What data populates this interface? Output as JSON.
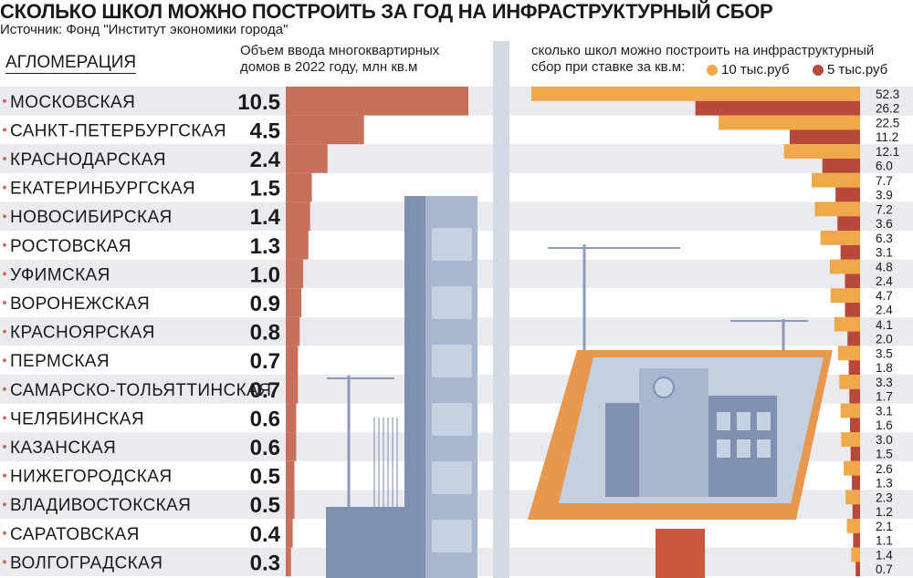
{
  "title": "СКОЛЬКО ШКОЛ МОЖНО ПОСТРОИТЬ ЗА ГОД НА ИНФРАСТРУКТУРНЫЙ СБОР",
  "source": "Источник: Фонд \"Институт экономики города\"",
  "column_header": "АГЛОМЕРАЦИЯ",
  "left_subtitle": "Объем ввода многоквартирных домов в 2022 году, млн кв.м",
  "right_subtitle": "сколько школ можно построить на инфраструктурный сбор при ставке за кв.м:",
  "legend": [
    {
      "label": "10 тыс.руб",
      "color": "#f0a94a"
    },
    {
      "label": "5 тыс.руб",
      "color": "#b7483a"
    }
  ],
  "colors": {
    "row_stripe": "#e9ebef",
    "left_bar": "#c86f5b",
    "divider": "#d3dae3",
    "building": "#7f90b3",
    "building_light": "#a8b6cf",
    "window": "#c7d1e2",
    "crane": "#8d9ab8",
    "frame": "#e8974f",
    "screen": "#c4cfdf",
    "stand": "#c9593a"
  },
  "chart_data": [
    {
      "type": "bar",
      "categories": [
        "МОСКОВСКАЯ",
        "САНКТ-ПЕТЕРБУРГСКАЯ",
        "КРАСНОДАРСКАЯ",
        "ЕКАТЕРИНБУРГСКАЯ",
        "НОВОСИБИРСКАЯ",
        "РОСТОВСКАЯ",
        "УФИМСКАЯ",
        "ВОРОНЕЖСКАЯ",
        "КРАСНОЯРСКАЯ",
        "ПЕРМСКАЯ",
        "САМАРСКО-ТОЛЬЯТТИНСКАЯ",
        "ЧЕЛЯБИНСКАЯ",
        "КАЗАНСКАЯ",
        "НИЖЕГОРОДСКАЯ",
        "ВЛАДИВОСТОКСКАЯ",
        "САРАТОВСКАЯ",
        "ВОЛГОГРАДСКАЯ"
      ],
      "values": [
        10.5,
        4.5,
        2.4,
        1.5,
        1.4,
        1.3,
        1.0,
        0.9,
        0.8,
        0.7,
        0.7,
        0.6,
        0.6,
        0.5,
        0.5,
        0.4,
        0.3
      ],
      "value_labels": [
        "10.5",
        "4.5",
        "2.4",
        "1.5",
        "1.4",
        "1.3",
        "1.0",
        "0.9",
        "0.8",
        "0.7",
        "0.7",
        "0.6",
        "0.6",
        "0.5",
        "0.5",
        "0.4",
        "0.3"
      ],
      "title": "Объем ввода многоквартирных домов в 2022 году, млн кв.м",
      "xlim": [
        0,
        10.5
      ]
    },
    {
      "type": "bar",
      "categories": [
        "МОСКОВСКАЯ",
        "САНКТ-ПЕТЕРБУРГСКАЯ",
        "КРАСНОДАРСКАЯ",
        "ЕКАТЕРИНБУРГСКАЯ",
        "НОВОСИБИРСКАЯ",
        "РОСТОВСКАЯ",
        "УФИМСКАЯ",
        "ВОРОНЕЖСКАЯ",
        "КРАСНОЯРСКАЯ",
        "ПЕРМСКАЯ",
        "САМАРСКО-ТОЛЬЯТТИНСКАЯ",
        "ЧЕЛЯБИНСКАЯ",
        "КАЗАНСКАЯ",
        "НИЖЕГОРОДСКАЯ",
        "ВЛАДИВОСТОКСКАЯ",
        "САРАТОВСКАЯ",
        "ВОЛГОГРАДСКАЯ"
      ],
      "series": [
        {
          "name": "10 тыс.руб",
          "values": [
            52.3,
            22.5,
            12.1,
            7.7,
            7.2,
            6.3,
            4.8,
            4.7,
            4.1,
            3.5,
            3.3,
            3.1,
            3.0,
            2.6,
            2.3,
            2.1,
            1.4
          ],
          "labels": [
            "52.3",
            "22.5",
            "12.1",
            "7.7",
            "7.2",
            "6.3",
            "4.8",
            "4.7",
            "4.1",
            "3.5",
            "3.3",
            "3.1",
            "3.0",
            "2.6",
            "2.3",
            "2.1",
            "1.4"
          ]
        },
        {
          "name": "5 тыс.руб",
          "values": [
            26.2,
            11.2,
            6.0,
            3.9,
            3.6,
            3.1,
            2.4,
            2.4,
            2.0,
            1.8,
            1.7,
            1.6,
            1.5,
            1.3,
            1.2,
            1.1,
            0.7
          ],
          "labels": [
            "26.2",
            "11.2",
            "6.0",
            "3.9",
            "3.6",
            "3.1",
            "2.4",
            "2.4",
            "2.0",
            "1.8",
            "1.7",
            "1.6",
            "1.5",
            "1.3",
            "1.2",
            "1.1",
            "0.7"
          ]
        }
      ],
      "title": "сколько школ можно построить на инфраструктурный сбор при ставке за кв.м:",
      "xlim": [
        0,
        52.3
      ]
    }
  ]
}
